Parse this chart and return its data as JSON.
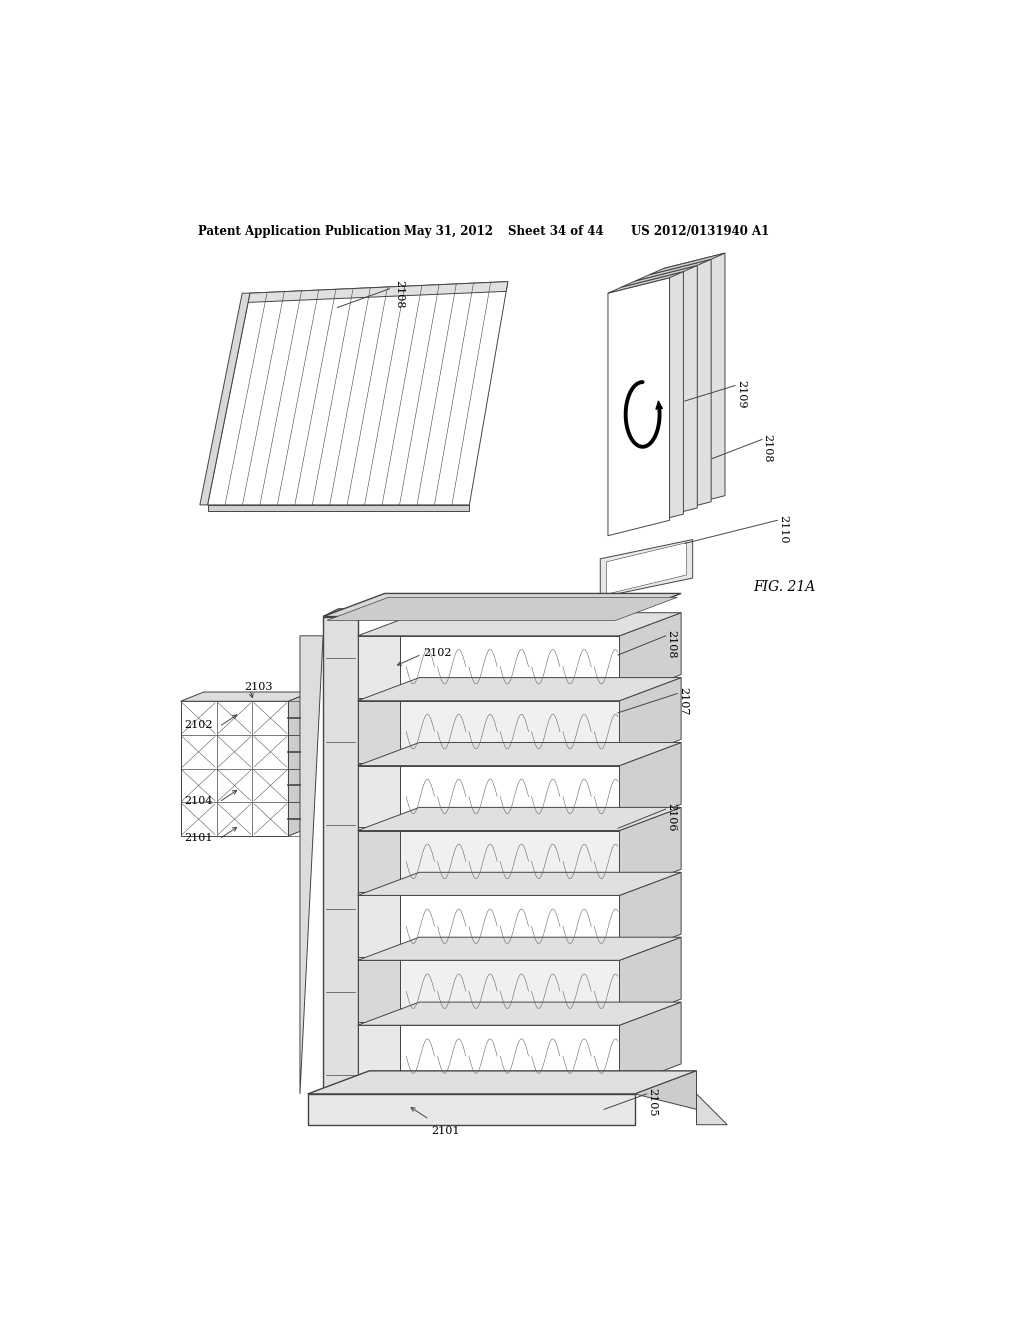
{
  "bg_color": "#ffffff",
  "header_text": "Patent Application Publication",
  "header_date": "May 31, 2012",
  "header_sheet": "Sheet 34 of 44",
  "header_patent": "US 2012/0131940 A1",
  "fig_label": "FIG. 21A",
  "line_color": "#444444",
  "fill_white": "#ffffff",
  "fill_light": "#e8e8e8",
  "fill_mid": "#cccccc",
  "fill_dark": "#aaaaaa"
}
